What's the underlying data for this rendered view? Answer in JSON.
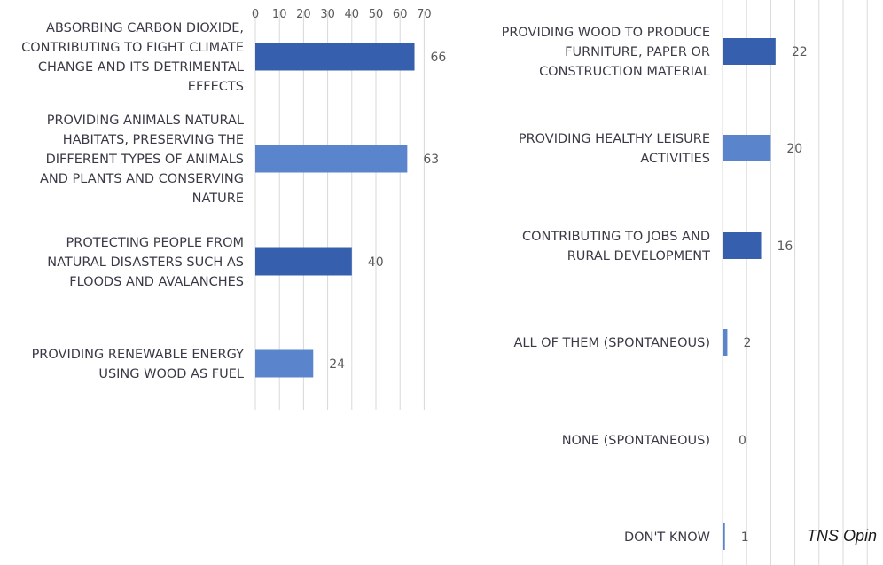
{
  "colors": {
    "dark_bar": "#3660ae",
    "light_bar": "#5a85cc"
  },
  "chart_data": [
    {
      "type": "bar",
      "orientation": "horizontal",
      "categories": [
        "ABSORBING CARBON DIOXIDE, CONTRIBUTING TO FIGHT CLIMATE CHANGE AND ITS DETRIMENTAL EFFECTS",
        "PROVIDING ANIMALS NATURAL HABITATS, PRESERVING THE DIFFERENT TYPES OF ANIMALS AND PLANTS AND CONSERVING NATURE",
        "PROTECTING PEOPLE FROM NATURAL DISASTERS SUCH AS FLOODS AND AVALANCHES",
        "PROVIDING RENEWABLE ENERGY USING WOOD AS FUEL"
      ],
      "category_lines": [
        [
          "ABSORBING CARBON DIOXIDE,",
          "CONTRIBUTING TO FIGHT CLIMATE",
          "CHANGE AND ITS DETRIMENTAL",
          "EFFECTS"
        ],
        [
          "PROVIDING ANIMALS NATURAL",
          "HABITATS, PRESERVING THE",
          "DIFFERENT TYPES OF ANIMALS",
          "AND PLANTS AND CONSERVING",
          "NATURE"
        ],
        [
          "PROTECTING PEOPLE FROM",
          "NATURAL DISASTERS SUCH AS",
          "FLOODS AND AVALANCHES"
        ],
        [
          "PROVIDING RENEWABLE ENERGY",
          "USING WOOD AS FUEL"
        ]
      ],
      "values": [
        66,
        63,
        40,
        24
      ],
      "bar_shades": [
        "dark",
        "light",
        "dark",
        "light"
      ],
      "xlim": [
        0,
        70
      ],
      "xticks": [
        0,
        10,
        20,
        30,
        40,
        50,
        60,
        70
      ],
      "grid": true
    },
    {
      "type": "bar",
      "orientation": "horizontal",
      "categories": [
        "PROVIDING WOOD TO PRODUCE FURNITURE, PAPER OR CONSTRUCTION MATERIAL",
        "PROVIDING HEALTHY LEISURE ACTIVITIES",
        "CONTRIBUTING TO JOBS AND RURAL DEVELOPMENT",
        "ALL OF THEM (SPONTANEOUS)",
        "NONE (SPONTANEOUS)",
        "DON'T KNOW"
      ],
      "category_lines": [
        [
          "PROVIDING WOOD TO PRODUCE",
          "FURNITURE, PAPER OR",
          "CONSTRUCTION MATERIAL"
        ],
        [
          "PROVIDING HEALTHY LEISURE",
          "ACTIVITIES"
        ],
        [
          "CONTRIBUTING TO JOBS AND",
          "RURAL DEVELOPMENT"
        ],
        [
          "ALL OF THEM (SPONTANEOUS)"
        ],
        [
          "NONE (SPONTANEOUS)"
        ],
        [
          "DON'T KNOW"
        ]
      ],
      "values": [
        22,
        20,
        16,
        2,
        0,
        1
      ],
      "bar_shades": [
        "dark",
        "light",
        "dark",
        "light",
        "dark",
        "light"
      ],
      "xlim": [
        0,
        70
      ],
      "grid": true
    }
  ],
  "source_note": "TNS Opin"
}
